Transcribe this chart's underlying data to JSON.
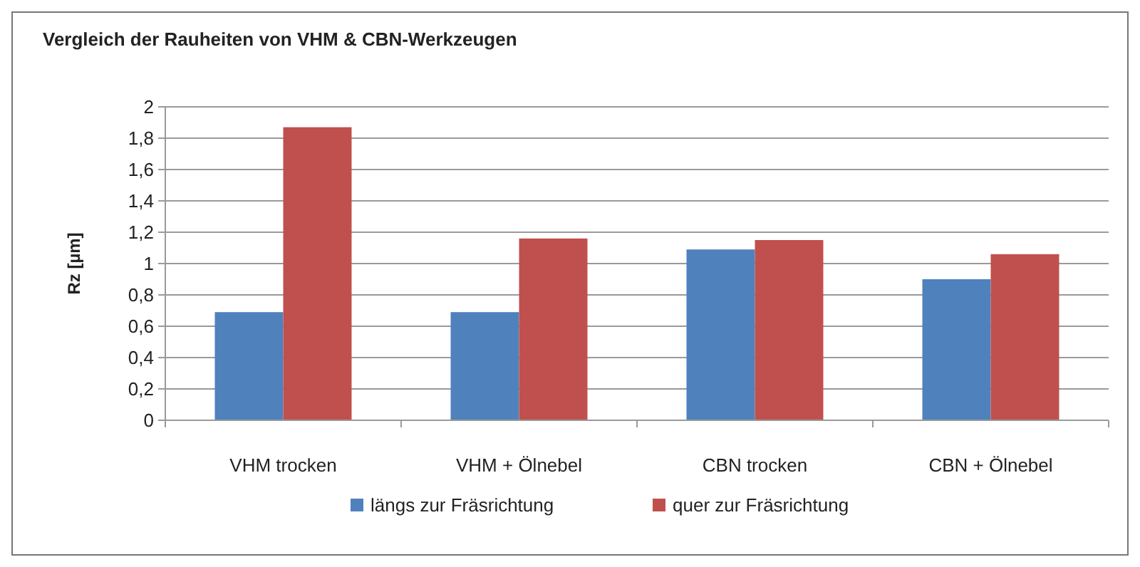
{
  "chart_data": {
    "type": "bar",
    "title": "Vergleich der Rauheiten von VHM & CBN-Werkzeugen",
    "ylabel": "Rz [µm]",
    "categories": [
      "VHM trocken",
      "VHM + Ölnebel",
      "CBN trocken",
      "CBN + Ölnebel"
    ],
    "series": [
      {
        "name": "längs zur Fräsrichtung",
        "color": "#4f81bd",
        "values": [
          0.69,
          0.69,
          1.09,
          0.9
        ]
      },
      {
        "name": "quer zur Fräsrichtung",
        "color": "#c0504d",
        "values": [
          1.87,
          1.16,
          1.15,
          1.06
        ]
      }
    ],
    "ylim": [
      0,
      2
    ],
    "yticks": [
      0,
      {
        "value": 0.2,
        "label": "0,2"
      },
      {
        "value": 0.4,
        "label": "0,4"
      },
      {
        "value": 0.6,
        "label": "0,6"
      },
      {
        "value": 0.8,
        "label": "0,8"
      },
      1,
      {
        "value": 1.2,
        "label": "1,2"
      },
      {
        "value": 1.4,
        "label": "1,4"
      },
      {
        "value": 1.6,
        "label": "1,6"
      },
      {
        "value": 1.8,
        "label": "1,8"
      },
      2
    ],
    "grid": "y",
    "legend": "bottom"
  }
}
